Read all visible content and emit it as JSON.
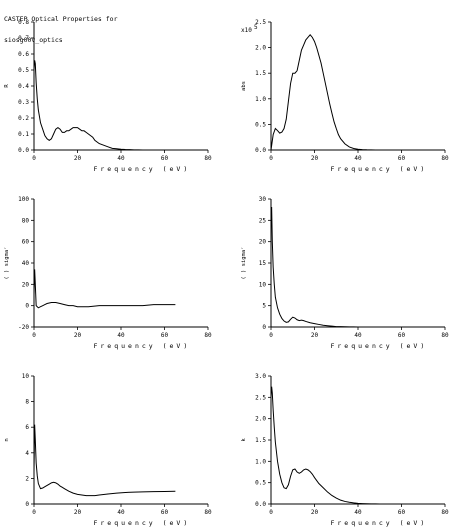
{
  "header": {
    "line1": "CASTEP Optical Properties for",
    "line2": "siosg00v_optics"
  },
  "chart_data": [
    {
      "type": "line",
      "title": "",
      "xlabel": "Frequency (eV)",
      "ylabel": "R",
      "xlim": [
        0,
        80
      ],
      "ylim": [
        0,
        0.8
      ],
      "xticks": [
        "0",
        "20",
        "40",
        "60",
        "80"
      ],
      "yticks": [
        "0.0",
        "0.1",
        "0.2",
        "0.3",
        "0.4",
        "0.5",
        "0.6",
        "0.7",
        "0.8"
      ],
      "multiplier": "",
      "series": [
        {
          "x": [
            0,
            0.3,
            0.6,
            1,
            1.5,
            2,
            3,
            4,
            5,
            6,
            7,
            8,
            9,
            10,
            11,
            12,
            13,
            14,
            15,
            16,
            17,
            18,
            19,
            20,
            21,
            22,
            23,
            24,
            25,
            26,
            27,
            28,
            30,
            32,
            34,
            36,
            38,
            40,
            42,
            44,
            46,
            48,
            50
          ],
          "values": [
            0.5,
            0.56,
            0.54,
            0.42,
            0.32,
            0.25,
            0.17,
            0.13,
            0.09,
            0.07,
            0.06,
            0.07,
            0.1,
            0.13,
            0.14,
            0.13,
            0.11,
            0.11,
            0.12,
            0.12,
            0.13,
            0.14,
            0.14,
            0.14,
            0.13,
            0.12,
            0.12,
            0.11,
            0.1,
            0.09,
            0.08,
            0.06,
            0.04,
            0.03,
            0.02,
            0.01,
            0.008,
            0.005,
            0.003,
            0.002,
            0.001,
            0.001,
            0.0
          ]
        }
      ]
    },
    {
      "type": "line",
      "title": "",
      "xlabel": "Frequency (eV)",
      "ylabel": "abs",
      "xlim": [
        0,
        80
      ],
      "ylim": [
        0,
        2.5
      ],
      "xticks": [
        "0",
        "20",
        "40",
        "60",
        "80"
      ],
      "yticks": [
        "0.0",
        "0.5",
        "1.0",
        "1.5",
        "2.0",
        "2.5"
      ],
      "multiplier": "x10",
      "multiplier_exp": "5",
      "series": [
        {
          "x": [
            0,
            1,
            2,
            3,
            4,
            5,
            6,
            7,
            8,
            9,
            10,
            11,
            12,
            13,
            14,
            15,
            16,
            17,
            18,
            19,
            20,
            21,
            22,
            23,
            24,
            25,
            26,
            27,
            28,
            29,
            30,
            31,
            32,
            34,
            36,
            38,
            40,
            42,
            44,
            46,
            48,
            50
          ],
          "values": [
            0.0,
            0.3,
            0.42,
            0.38,
            0.33,
            0.35,
            0.42,
            0.6,
            0.95,
            1.3,
            1.5,
            1.5,
            1.55,
            1.75,
            1.95,
            2.05,
            2.15,
            2.2,
            2.25,
            2.2,
            2.12,
            2.0,
            1.85,
            1.7,
            1.5,
            1.3,
            1.1,
            0.9,
            0.72,
            0.55,
            0.42,
            0.3,
            0.22,
            0.12,
            0.06,
            0.03,
            0.015,
            0.008,
            0.004,
            0.002,
            0.001,
            0.0
          ]
        }
      ]
    },
    {
      "type": "line",
      "title": "",
      "xlabel": "Frequency (eV)",
      "ylabel": "( ) sigmaʳ",
      "xlim": [
        0,
        80
      ],
      "ylim": [
        -20,
        100
      ],
      "xticks": [
        "0",
        "20",
        "40",
        "60",
        "80"
      ],
      "yticks": [
        "-20",
        "0",
        "20",
        "40",
        "60",
        "80",
        "100"
      ],
      "multiplier": "",
      "series": [
        {
          "x": [
            0,
            0.3,
            0.6,
            1,
            2,
            3,
            4,
            5,
            6,
            8,
            10,
            12,
            14,
            16,
            18,
            20,
            25,
            30,
            35,
            40,
            45,
            50,
            55,
            60,
            65
          ],
          "values": [
            10,
            34,
            20,
            0,
            -2,
            -1,
            0,
            1,
            2,
            3,
            3,
            2,
            1,
            0,
            0,
            -1,
            -1,
            0,
            0,
            0,
            0,
            0,
            1,
            1,
            1
          ]
        }
      ]
    },
    {
      "type": "line",
      "title": "",
      "xlabel": "Frequency (eV)",
      "ylabel": "( ) sigmaʳ",
      "xlim": [
        0,
        80
      ],
      "ylim": [
        0,
        30
      ],
      "xticks": [
        "0",
        "20",
        "40",
        "60",
        "80"
      ],
      "yticks": [
        "0",
        "5",
        "10",
        "15",
        "20",
        "25",
        "30"
      ],
      "multiplier": "",
      "series": [
        {
          "x": [
            0,
            0.3,
            0.6,
            1,
            1.5,
            2,
            3,
            4,
            5,
            6,
            7,
            8,
            9,
            10,
            11,
            12,
            13,
            14,
            15,
            16,
            18,
            20,
            22,
            24,
            26,
            28,
            30,
            32,
            34,
            36,
            38,
            40
          ],
          "values": [
            28,
            28,
            20,
            14,
            10,
            7,
            4.5,
            3,
            2,
            1.4,
            1.1,
            1.2,
            1.8,
            2.3,
            2.1,
            1.7,
            1.5,
            1.6,
            1.5,
            1.3,
            1.0,
            0.8,
            0.6,
            0.4,
            0.3,
            0.2,
            0.1,
            0.08,
            0.05,
            0.03,
            0.02,
            0.01
          ]
        }
      ]
    },
    {
      "type": "line",
      "title": "",
      "xlabel": "Frequency (eV)",
      "ylabel": "n",
      "xlim": [
        0,
        80
      ],
      "ylim": [
        0,
        10
      ],
      "xticks": [
        "0",
        "20",
        "40",
        "60",
        "80"
      ],
      "yticks": [
        "0",
        "2",
        "4",
        "6",
        "8",
        "10"
      ],
      "multiplier": "",
      "series": [
        {
          "x": [
            0,
            0.3,
            0.6,
            1,
            1.5,
            2,
            3,
            4,
            5,
            6,
            7,
            8,
            9,
            10,
            11,
            12,
            13,
            14,
            16,
            18,
            20,
            22,
            24,
            26,
            28,
            30,
            34,
            38,
            42,
            46,
            50,
            55,
            60,
            65
          ],
          "values": [
            2.5,
            6.2,
            5.0,
            3.2,
            2.2,
            1.6,
            1.2,
            1.25,
            1.35,
            1.45,
            1.55,
            1.65,
            1.7,
            1.65,
            1.55,
            1.4,
            1.3,
            1.2,
            1.0,
            0.85,
            0.75,
            0.7,
            0.65,
            0.65,
            0.65,
            0.7,
            0.78,
            0.85,
            0.9,
            0.93,
            0.95,
            0.97,
            0.98,
            1.0
          ]
        }
      ]
    },
    {
      "type": "line",
      "title": "",
      "xlabel": "Frequency (eV)",
      "ylabel": "k",
      "xlim": [
        0,
        80
      ],
      "ylim": [
        0,
        3.0
      ],
      "xticks": [
        "0",
        "20",
        "40",
        "60",
        "80"
      ],
      "yticks": [
        "0.0",
        "0.5",
        "1.0",
        "1.5",
        "2.0",
        "2.5",
        "3.0"
      ],
      "multiplier": "",
      "series": [
        {
          "x": [
            0,
            0.3,
            0.6,
            1,
            1.5,
            2,
            3,
            4,
            5,
            6,
            7,
            8,
            9,
            10,
            11,
            12,
            13,
            14,
            15,
            16,
            17,
            18,
            19,
            20,
            21,
            22,
            24,
            26,
            28,
            30,
            32,
            34,
            36,
            38,
            40,
            42,
            44,
            46,
            48,
            50
          ],
          "values": [
            2.5,
            2.75,
            2.6,
            2.2,
            1.8,
            1.45,
            1.0,
            0.7,
            0.5,
            0.38,
            0.36,
            0.45,
            0.65,
            0.8,
            0.82,
            0.75,
            0.72,
            0.75,
            0.8,
            0.82,
            0.8,
            0.76,
            0.7,
            0.62,
            0.55,
            0.48,
            0.38,
            0.28,
            0.2,
            0.14,
            0.09,
            0.06,
            0.04,
            0.025,
            0.015,
            0.01,
            0.006,
            0.004,
            0.002,
            0.001
          ]
        }
      ]
    }
  ]
}
